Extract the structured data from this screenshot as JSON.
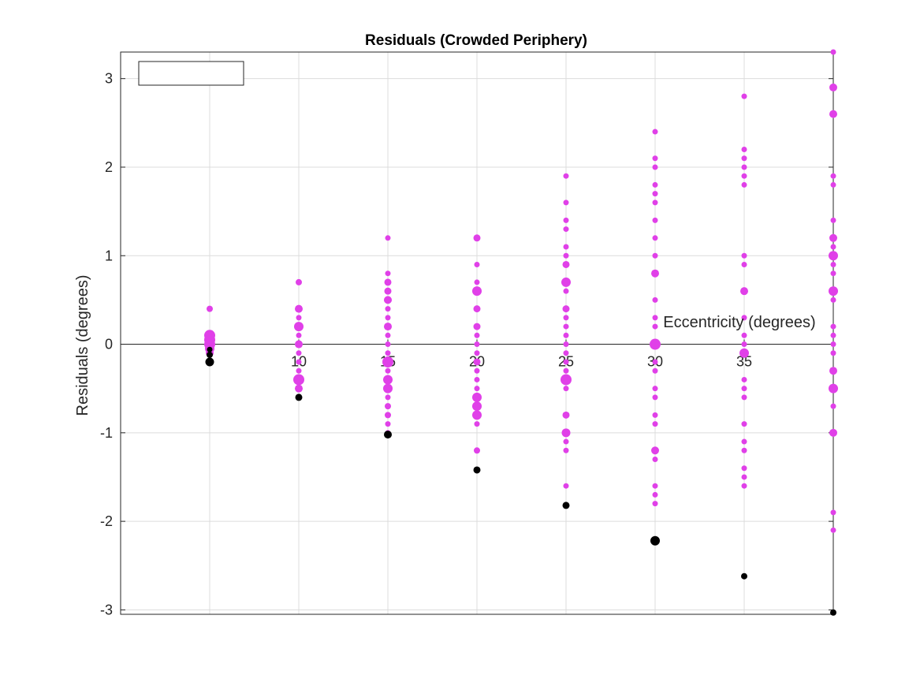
{
  "chart_data": {
    "type": "scatter",
    "title": "Residuals (Crowded Periphery)",
    "xlabel": "Eccentricity (degrees)",
    "ylabel": "Residuals (degrees)",
    "xlim": [
      0,
      40
    ],
    "ylim": [
      -3.05,
      3.3
    ],
    "x_ticks": [
      10,
      15,
      20,
      25,
      30,
      35
    ],
    "y_ticks": [
      -3,
      -2,
      -1,
      0,
      1,
      2,
      3
    ],
    "grid": true,
    "legend": {
      "placement": "top-left",
      "entries": []
    },
    "series": [
      {
        "color": "#e040e8",
        "points": [
          [
            5,
            0.4,
            8
          ],
          [
            5,
            0.1,
            14
          ],
          [
            5,
            0.05,
            14
          ],
          [
            5,
            0.0,
            14
          ],
          [
            5,
            -0.05,
            12
          ],
          [
            5,
            -0.1,
            10
          ],
          [
            10,
            0.7,
            8
          ],
          [
            10,
            0.4,
            10
          ],
          [
            10,
            0.3,
            7
          ],
          [
            10,
            0.2,
            12
          ],
          [
            10,
            0.1,
            7
          ],
          [
            10,
            0.0,
            10
          ],
          [
            10,
            -0.1,
            7
          ],
          [
            10,
            -0.2,
            7
          ],
          [
            10,
            -0.3,
            7
          ],
          [
            10,
            -0.4,
            14
          ],
          [
            10,
            -0.5,
            10
          ],
          [
            15,
            1.2,
            7
          ],
          [
            15,
            0.8,
            7
          ],
          [
            15,
            0.7,
            9
          ],
          [
            15,
            0.6,
            9
          ],
          [
            15,
            0.5,
            10
          ],
          [
            15,
            0.4,
            7
          ],
          [
            15,
            0.3,
            7
          ],
          [
            15,
            0.2,
            10
          ],
          [
            15,
            0.1,
            7
          ],
          [
            15,
            0.0,
            7
          ],
          [
            15,
            -0.1,
            7
          ],
          [
            15,
            -0.2,
            14
          ],
          [
            15,
            -0.3,
            7
          ],
          [
            15,
            -0.4,
            12
          ],
          [
            15,
            -0.5,
            12
          ],
          [
            15,
            -0.6,
            7
          ],
          [
            15,
            -0.7,
            8
          ],
          [
            15,
            -0.8,
            8
          ],
          [
            15,
            -0.9,
            7
          ],
          [
            15,
            -1.0,
            7
          ],
          [
            20,
            1.2,
            9
          ],
          [
            20,
            0.9,
            7
          ],
          [
            20,
            0.7,
            7
          ],
          [
            20,
            0.6,
            12
          ],
          [
            20,
            0.4,
            9
          ],
          [
            20,
            0.2,
            9
          ],
          [
            20,
            0.1,
            7
          ],
          [
            20,
            0.0,
            7
          ],
          [
            20,
            -0.1,
            7
          ],
          [
            20,
            -0.2,
            9
          ],
          [
            20,
            -0.3,
            7
          ],
          [
            20,
            -0.4,
            7
          ],
          [
            20,
            -0.5,
            7
          ],
          [
            20,
            -0.6,
            12
          ],
          [
            20,
            -0.7,
            12
          ],
          [
            20,
            -0.8,
            12
          ],
          [
            20,
            -0.9,
            7
          ],
          [
            20,
            -1.2,
            8
          ],
          [
            25,
            1.9,
            7
          ],
          [
            25,
            1.6,
            7
          ],
          [
            25,
            1.4,
            7
          ],
          [
            25,
            1.3,
            7
          ],
          [
            25,
            1.1,
            7
          ],
          [
            25,
            1.0,
            7
          ],
          [
            25,
            0.9,
            9
          ],
          [
            25,
            0.7,
            12
          ],
          [
            25,
            0.6,
            7
          ],
          [
            25,
            0.4,
            9
          ],
          [
            25,
            0.3,
            7
          ],
          [
            25,
            0.2,
            7
          ],
          [
            25,
            0.1,
            7
          ],
          [
            25,
            0.0,
            7
          ],
          [
            25,
            -0.1,
            7
          ],
          [
            25,
            -0.2,
            7
          ],
          [
            25,
            -0.3,
            7
          ],
          [
            25,
            -0.4,
            14
          ],
          [
            25,
            -0.5,
            7
          ],
          [
            25,
            -0.8,
            9
          ],
          [
            25,
            -1.0,
            11
          ],
          [
            25,
            -1.1,
            7
          ],
          [
            25,
            -1.2,
            7
          ],
          [
            25,
            -1.6,
            7
          ],
          [
            30,
            2.4,
            7
          ],
          [
            30,
            2.1,
            7
          ],
          [
            30,
            2.0,
            7
          ],
          [
            30,
            1.8,
            7
          ],
          [
            30,
            1.7,
            7
          ],
          [
            30,
            1.6,
            7
          ],
          [
            30,
            1.4,
            7
          ],
          [
            30,
            1.2,
            7
          ],
          [
            30,
            1.0,
            7
          ],
          [
            30,
            0.8,
            10
          ],
          [
            30,
            0.5,
            7
          ],
          [
            30,
            0.3,
            7
          ],
          [
            30,
            0.2,
            7
          ],
          [
            30,
            0.0,
            14
          ],
          [
            30,
            -0.2,
            7
          ],
          [
            30,
            -0.3,
            7
          ],
          [
            30,
            -0.5,
            7
          ],
          [
            30,
            -0.6,
            7
          ],
          [
            30,
            -0.8,
            7
          ],
          [
            30,
            -0.9,
            7
          ],
          [
            30,
            -1.2,
            10
          ],
          [
            30,
            -1.3,
            7
          ],
          [
            30,
            -1.6,
            7
          ],
          [
            30,
            -1.7,
            7
          ],
          [
            30,
            -1.8,
            7
          ],
          [
            35,
            2.8,
            7
          ],
          [
            35,
            2.2,
            7
          ],
          [
            35,
            2.1,
            7
          ],
          [
            35,
            2.0,
            7
          ],
          [
            35,
            1.9,
            7
          ],
          [
            35,
            1.8,
            7
          ],
          [
            35,
            1.0,
            7
          ],
          [
            35,
            0.9,
            7
          ],
          [
            35,
            0.6,
            10
          ],
          [
            35,
            0.3,
            7
          ],
          [
            35,
            0.1,
            7
          ],
          [
            35,
            0.0,
            7
          ],
          [
            35,
            -0.1,
            12
          ],
          [
            35,
            -0.4,
            7
          ],
          [
            35,
            -0.5,
            7
          ],
          [
            35,
            -0.6,
            7
          ],
          [
            35,
            -0.9,
            7
          ],
          [
            35,
            -1.1,
            7
          ],
          [
            35,
            -1.2,
            7
          ],
          [
            35,
            -1.4,
            7
          ],
          [
            35,
            -1.5,
            7
          ],
          [
            35,
            -1.6,
            7
          ],
          [
            40,
            3.3,
            7
          ],
          [
            40,
            2.9,
            10
          ],
          [
            40,
            2.6,
            10
          ],
          [
            40,
            1.9,
            7
          ],
          [
            40,
            1.8,
            7
          ],
          [
            40,
            1.4,
            7
          ],
          [
            40,
            1.2,
            10
          ],
          [
            40,
            1.1,
            7
          ],
          [
            40,
            1.0,
            12
          ],
          [
            40,
            0.9,
            7
          ],
          [
            40,
            0.8,
            7
          ],
          [
            40,
            0.6,
            12
          ],
          [
            40,
            0.5,
            7
          ],
          [
            40,
            0.2,
            7
          ],
          [
            40,
            0.1,
            7
          ],
          [
            40,
            0.0,
            7
          ],
          [
            40,
            -0.1,
            7
          ],
          [
            40,
            -0.3,
            10
          ],
          [
            40,
            -0.5,
            12
          ],
          [
            40,
            -0.7,
            7
          ],
          [
            40,
            -1.0,
            10
          ],
          [
            40,
            -1.9,
            7
          ],
          [
            40,
            -2.1,
            7
          ]
        ]
      },
      {
        "color": "#000000",
        "points": [
          [
            5,
            -0.06,
            7
          ],
          [
            5,
            -0.12,
            8
          ],
          [
            5,
            -0.2,
            11
          ],
          [
            10,
            -0.6,
            9
          ],
          [
            15,
            -1.02,
            10
          ],
          [
            20,
            -1.42,
            9
          ],
          [
            25,
            -1.82,
            9
          ],
          [
            30,
            -2.22,
            12
          ],
          [
            35,
            -2.62,
            8
          ],
          [
            40,
            -3.03,
            8
          ]
        ]
      }
    ]
  }
}
